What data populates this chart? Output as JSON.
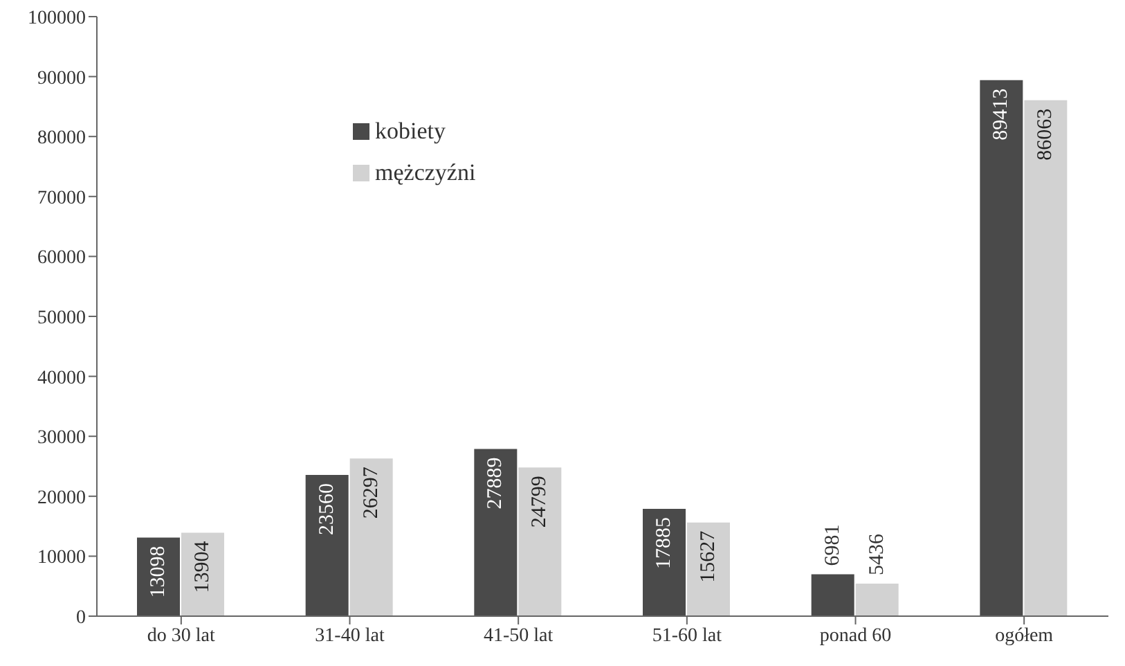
{
  "chart_data": {
    "type": "bar",
    "categories": [
      "do 30 lat",
      "31-40 lat",
      "41-50 lat",
      "51-60 lat",
      "ponad 60",
      "ogółem"
    ],
    "series": [
      {
        "name": "kobiety",
        "color": "#4a4a4a",
        "values": [
          13098,
          23560,
          27889,
          17885,
          6981,
          89413
        ]
      },
      {
        "name": "mężczyźni",
        "color": "#d2d2d2",
        "values": [
          13904,
          26297,
          24799,
          15627,
          5436,
          86063
        ]
      }
    ],
    "ylim": [
      0,
      100000
    ],
    "yticks": [
      0,
      10000,
      20000,
      30000,
      40000,
      50000,
      60000,
      70000,
      80000,
      90000,
      100000
    ],
    "grid": false,
    "legend": "top left",
    "data_labels": true
  }
}
